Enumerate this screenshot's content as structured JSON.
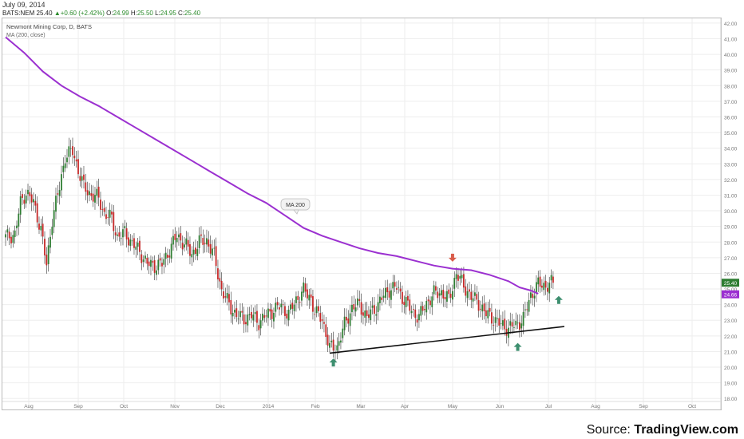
{
  "header": {
    "date": "July 09, 2014",
    "symbol": "BATS:NEM",
    "last": "25.40",
    "change": "+0.60 (+2.42%)",
    "o_label": "O:",
    "o": "24.99",
    "h_label": "H:",
    "h": "25.50",
    "l_label": "L:",
    "l": "24.95",
    "c_label": "C:",
    "c": "25.40"
  },
  "chart_data": {
    "type": "candlestick",
    "title": "Newmont Mining Corp, D, BATS",
    "indicator_label": "MA (200, close)",
    "annotation": "MA 200",
    "ylim": [
      17.4,
      42.3
    ],
    "y_ticks": [
      "18.00",
      "19.00",
      "20.00",
      "21.00",
      "22.00",
      "23.00",
      "24.00",
      "25.00",
      "26.00",
      "27.00",
      "28.00",
      "29.00",
      "30.00",
      "31.00",
      "32.00",
      "33.00",
      "34.00",
      "35.00",
      "36.00",
      "37.00",
      "38.00",
      "39.00",
      "40.00",
      "41.00",
      "42.00"
    ],
    "x_ticks": [
      "Aug",
      "Sep",
      "Oct",
      "Nov",
      "Dec",
      "2014",
      "Feb",
      "Mar",
      "Apr",
      "May",
      "Jun",
      "Jul",
      "Aug",
      "Sep",
      "Oct"
    ],
    "price_badges": {
      "close": "25.40",
      "ma": "24.66"
    },
    "ma_200": [
      [
        0,
        41.1
      ],
      [
        10,
        40.1
      ],
      [
        20,
        38.9
      ],
      [
        30,
        38.0
      ],
      [
        40,
        37.3
      ],
      [
        50,
        36.7
      ],
      [
        60,
        36.0
      ],
      [
        70,
        35.3
      ],
      [
        80,
        34.6
      ],
      [
        90,
        33.9
      ],
      [
        100,
        33.2
      ],
      [
        110,
        32.5
      ],
      [
        120,
        31.8
      ],
      [
        130,
        31.1
      ],
      [
        140,
        30.5
      ],
      [
        150,
        29.7
      ],
      [
        160,
        28.9
      ],
      [
        170,
        28.4
      ],
      [
        180,
        28.0
      ],
      [
        190,
        27.6
      ],
      [
        200,
        27.3
      ],
      [
        210,
        27.1
      ],
      [
        220,
        26.8
      ],
      [
        230,
        26.5
      ],
      [
        240,
        26.3
      ],
      [
        250,
        26.2
      ],
      [
        260,
        25.9
      ],
      [
        270,
        25.5
      ],
      [
        276,
        25.1
      ],
      [
        282,
        24.9
      ],
      [
        286,
        24.7
      ]
    ],
    "price_path": [
      [
        0,
        28.3
      ],
      [
        5,
        28.5
      ],
      [
        8,
        30.5
      ],
      [
        11,
        31.2
      ],
      [
        15,
        30.5
      ],
      [
        19,
        28.8
      ],
      [
        22,
        26.5
      ],
      [
        25,
        29.5
      ],
      [
        29,
        31.5
      ],
      [
        32,
        33.5
      ],
      [
        36,
        33.8
      ],
      [
        38,
        33.0
      ],
      [
        42,
        31.5
      ],
      [
        46,
        31.0
      ],
      [
        50,
        30.8
      ],
      [
        53,
        29.8
      ],
      [
        57,
        29.5
      ],
      [
        60,
        28.3
      ],
      [
        64,
        28.6
      ],
      [
        68,
        27.9
      ],
      [
        72,
        27.4
      ],
      [
        76,
        26.6
      ],
      [
        80,
        26.5
      ],
      [
        84,
        26.6
      ],
      [
        88,
        27.5
      ],
      [
        92,
        28.4
      ],
      [
        96,
        27.9
      ],
      [
        100,
        27.2
      ],
      [
        104,
        28.0
      ],
      [
        108,
        28.1
      ],
      [
        112,
        27.1
      ],
      [
        116,
        24.9
      ],
      [
        120,
        24.0
      ],
      [
        124,
        23.3
      ],
      [
        128,
        23.1
      ],
      [
        132,
        23.3
      ],
      [
        136,
        22.9
      ],
      [
        140,
        23.3
      ],
      [
        144,
        23.7
      ],
      [
        148,
        23.9
      ],
      [
        152,
        23.4
      ],
      [
        156,
        24.3
      ],
      [
        160,
        24.9
      ],
      [
        164,
        24.4
      ],
      [
        166,
        23.5
      ],
      [
        170,
        23.1
      ],
      [
        174,
        21.2
      ],
      [
        178,
        21.3
      ],
      [
        182,
        22.7
      ],
      [
        186,
        23.8
      ],
      [
        190,
        24.0
      ],
      [
        194,
        23.2
      ],
      [
        198,
        23.7
      ],
      [
        202,
        24.4
      ],
      [
        206,
        25.0
      ],
      [
        210,
        25.1
      ],
      [
        214,
        24.3
      ],
      [
        218,
        23.6
      ],
      [
        222,
        23.2
      ],
      [
        226,
        24.1
      ],
      [
        230,
        24.7
      ],
      [
        234,
        24.8
      ],
      [
        238,
        24.3
      ],
      [
        242,
        26.0
      ],
      [
        246,
        25.2
      ],
      [
        250,
        24.5
      ],
      [
        254,
        24.1
      ],
      [
        258,
        23.4
      ],
      [
        262,
        23.1
      ],
      [
        266,
        22.7
      ],
      [
        270,
        22.5
      ],
      [
        274,
        22.7
      ],
      [
        278,
        23.1
      ],
      [
        282,
        24.6
      ],
      [
        286,
        25.3
      ],
      [
        290,
        25.2
      ],
      [
        294,
        25.4
      ]
    ],
    "trendline": [
      [
        174,
        20.9
      ],
      [
        300,
        22.6
      ]
    ],
    "markers": [
      {
        "i": 176,
        "dir": "up",
        "price": 20.3
      },
      {
        "i": 240,
        "dir": "down",
        "price": 27.0
      },
      {
        "i": 275,
        "dir": "up",
        "price": 21.3
      },
      {
        "i": 297,
        "dir": "up",
        "price": 24.3
      }
    ]
  },
  "credit": {
    "prefix": "Source: ",
    "brand": "TradingView.com"
  }
}
